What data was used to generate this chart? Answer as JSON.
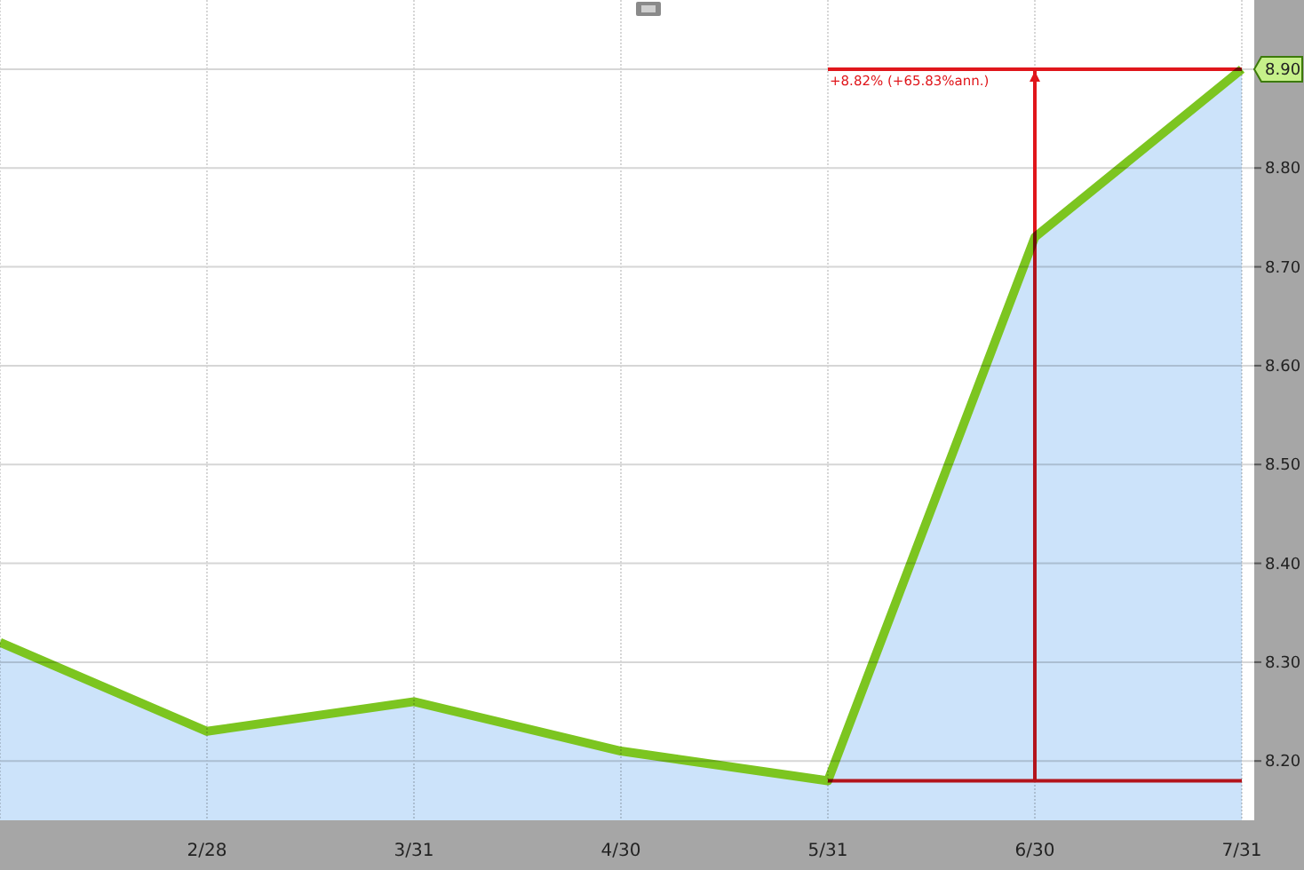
{
  "chart_data": {
    "type": "area",
    "categories": [
      null,
      "2/28",
      "3/31",
      "4/30",
      "5/31",
      "6/30",
      "7/31"
    ],
    "series": [
      {
        "color": "#7cc520",
        "values": [
          8.32,
          8.23,
          8.26,
          8.21,
          8.18,
          8.73,
          8.9
        ],
        "value_labels": [
          null,
          null,
          null,
          null,
          null,
          null,
          "8.90"
        ]
      }
    ],
    "ylim": [
      8.14,
      8.97
    ],
    "yticks": [
      {
        "value": 8.2,
        "label": "8.20"
      },
      {
        "value": 8.3,
        "label": "8.30"
      },
      {
        "value": 8.4,
        "label": "8.40"
      },
      {
        "value": 8.5,
        "label": "8.50"
      },
      {
        "value": 8.6,
        "label": "8.60"
      },
      {
        "value": 8.7,
        "label": "8.70"
      },
      {
        "value": 8.8,
        "label": "8.80"
      },
      {
        "value": 8.9,
        "label": null
      }
    ],
    "grid": true,
    "annotations": [
      "+8.82% (+65.83%ann.)"
    ]
  }
}
